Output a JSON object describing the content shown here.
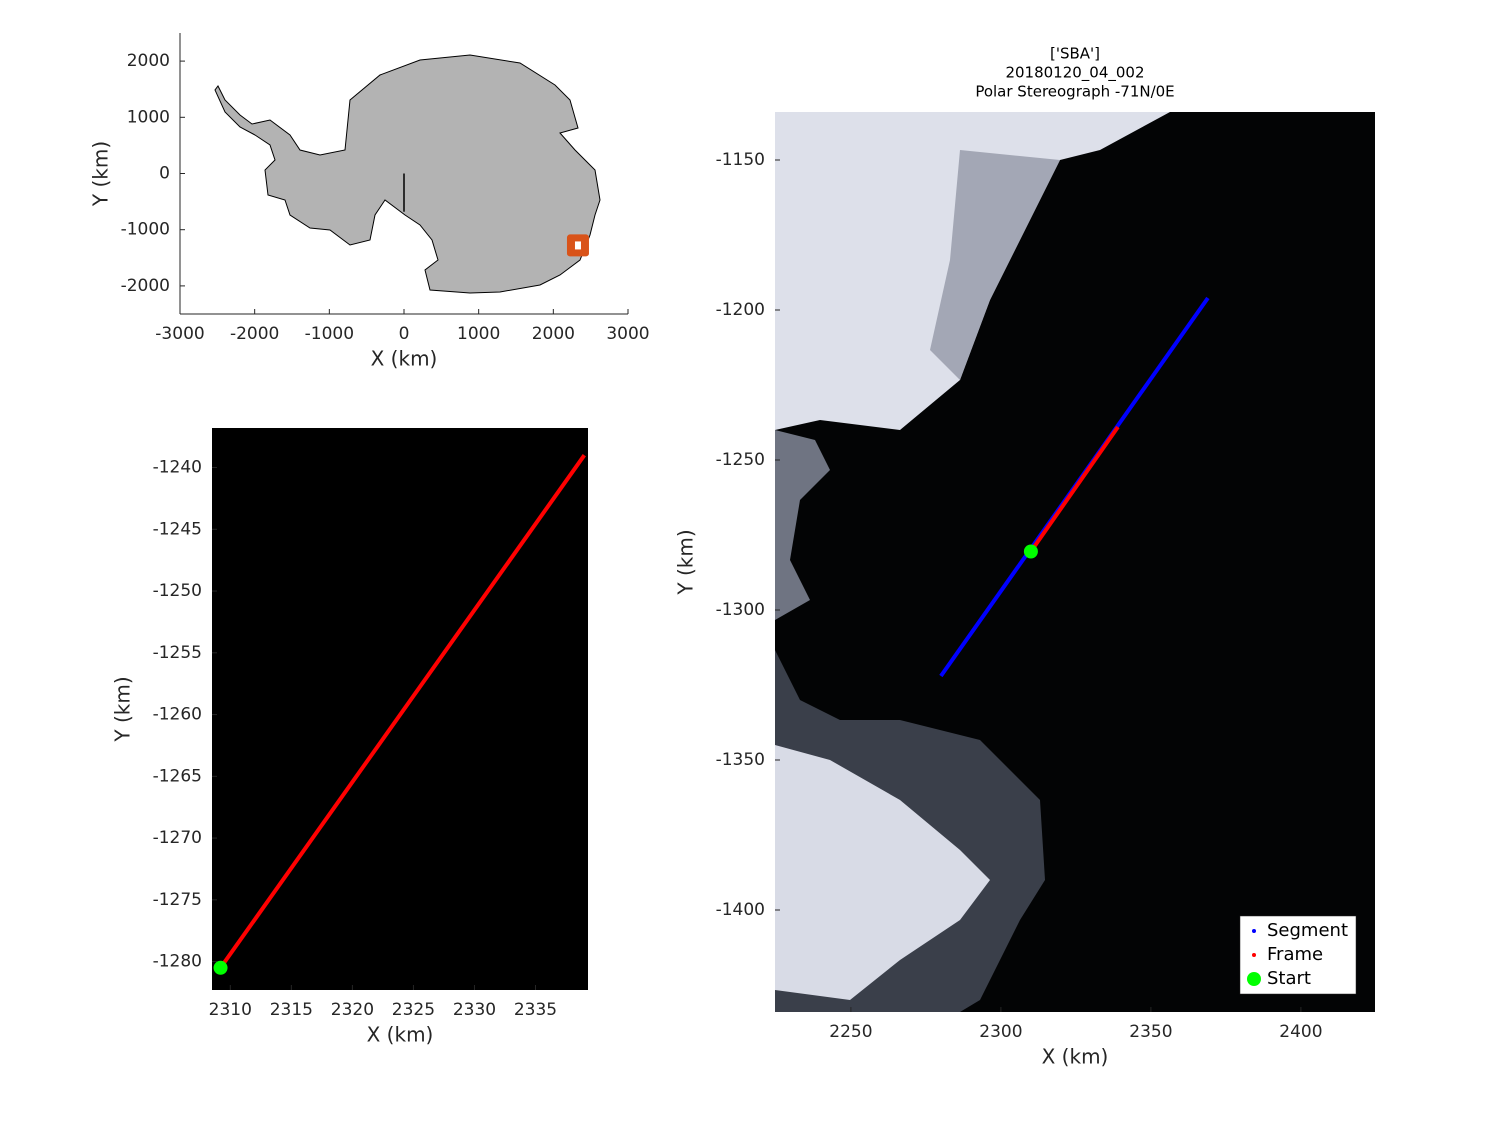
{
  "chart_data": [
    {
      "type": "map",
      "xlabel": "X (km)",
      "ylabel": "Y (km)",
      "xlim": [
        -3000,
        3000
      ],
      "ylim": [
        -2500,
        2500
      ],
      "xticks": [
        -3000,
        -2000,
        -1000,
        0,
        1000,
        2000,
        3000
      ],
      "yticks": [
        -2000,
        -1000,
        0,
        1000,
        2000
      ],
      "series": [
        {
          "color": "#000000",
          "marker": "none",
          "x": [
            0,
            0
          ],
          "y": [
            0,
            -680
          ]
        },
        {
          "color": "#d95319",
          "marker": "square",
          "x": [
            2330
          ],
          "y": [
            -1280
          ]
        }
      ]
    },
    {
      "type": "line",
      "xlabel": "X (km)",
      "ylabel": "Y (km)",
      "xlim": [
        2308.5,
        2339.3
      ],
      "ylim": [
        -1282.3,
        -1236.8
      ],
      "xticks": [
        2310,
        2315,
        2320,
        2325,
        2330,
        2335
      ],
      "yticks": [
        -1280,
        -1275,
        -1270,
        -1265,
        -1260,
        -1255,
        -1250,
        -1245,
        -1240
      ],
      "series": [
        {
          "color": "#ff0000",
          "marker": "none",
          "x": [
            2309.2,
            2339
          ],
          "y": [
            -1280.5,
            -1239
          ]
        },
        {
          "color": "#00ff00",
          "marker": "circle",
          "x": [
            2309.2
          ],
          "y": [
            -1280.5
          ]
        }
      ]
    },
    {
      "type": "line",
      "title": [
        "['SBA']",
        "20180120_04_002",
        "Polar Stereograph -71N/0E"
      ],
      "xlabel": "X (km)",
      "ylabel": "Y (km)",
      "xlim": [
        2224.7,
        2424.7
      ],
      "ylim": [
        -1434,
        -1134
      ],
      "xticks": [
        2250,
        2300,
        2350,
        2400
      ],
      "yticks": [
        -1400,
        -1350,
        -1300,
        -1250,
        -1200,
        -1150
      ],
      "legend": "lower right",
      "series": [
        {
          "name": "Segment",
          "color": "#0000ff",
          "marker": "none",
          "x": [
            2280,
            2369
          ],
          "y": [
            -1322,
            -1196
          ]
        },
        {
          "name": "Frame",
          "color": "#ff0000",
          "marker": "none",
          "x": [
            2310,
            2339
          ],
          "y": [
            -1280.5,
            -1239
          ]
        },
        {
          "name": "Start",
          "color": "#00ff00",
          "marker": "circle",
          "x": [
            2310
          ],
          "y": [
            -1280.5
          ]
        }
      ]
    }
  ]
}
